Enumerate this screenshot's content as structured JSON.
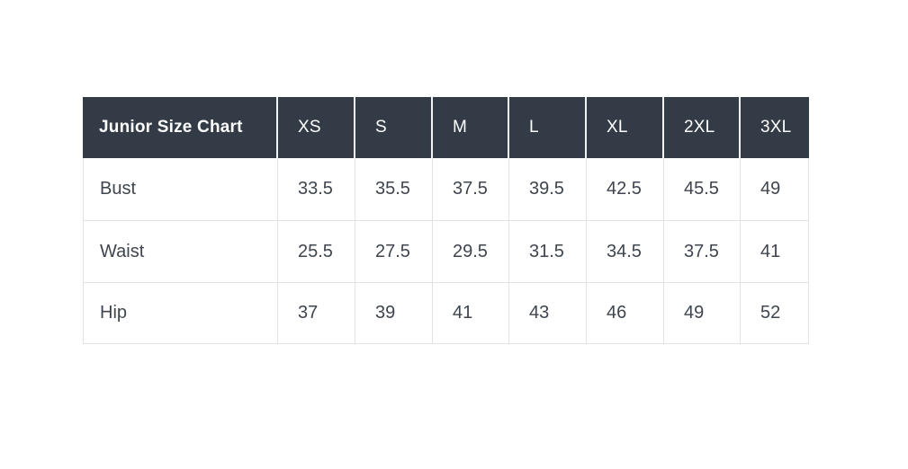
{
  "theme": {
    "page_bg": "#ffffff",
    "header_bg": "#333b46",
    "header_text": "#ffffff",
    "header_divider": "#f2f3f4",
    "body_bg": "#ffffff",
    "body_text": "#3e454e",
    "border": "#e2e2e2"
  },
  "table": {
    "header": {
      "title": "Junior Size Chart",
      "sizes": [
        "XS",
        "S",
        "M",
        "L",
        "XL",
        "2XL",
        "3XL"
      ]
    },
    "rows": [
      {
        "label": "Bust",
        "values": [
          "33.5",
          "35.5",
          "37.5",
          "39.5",
          "42.5",
          "45.5",
          "49"
        ]
      },
      {
        "label": "Waist",
        "values": [
          "25.5",
          "27.5",
          "29.5",
          "31.5",
          "34.5",
          "37.5",
          "41"
        ]
      },
      {
        "label": "Hip",
        "values": [
          "37",
          "39",
          "41",
          "43",
          "46",
          "49",
          "52"
        ]
      }
    ]
  },
  "chart_data": {
    "type": "table",
    "title": "Junior Size Chart",
    "columns": [
      "Junior Size Chart",
      "XS",
      "S",
      "M",
      "L",
      "XL",
      "2XL",
      "3XL"
    ],
    "rows": [
      [
        "Bust",
        33.5,
        35.5,
        37.5,
        39.5,
        42.5,
        45.5,
        49
      ],
      [
        "Waist",
        25.5,
        27.5,
        29.5,
        31.5,
        34.5,
        37.5,
        41
      ],
      [
        "Hip",
        37,
        39,
        41,
        43,
        46,
        49,
        52
      ]
    ]
  }
}
